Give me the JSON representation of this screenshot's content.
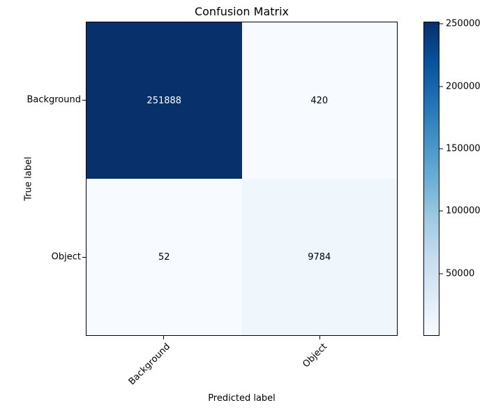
{
  "chart_data": {
    "type": "heatmap",
    "title": "Confusion Matrix",
    "xlabel": "Predicted label",
    "ylabel": "True label",
    "x_tick_labels": [
      "Background",
      "Object"
    ],
    "y_tick_labels": [
      "Background",
      "Object"
    ],
    "matrix": [
      [
        251888,
        420
      ],
      [
        52,
        9784
      ]
    ],
    "cells": [
      {
        "row": "Background",
        "col": "Background",
        "value": "251888",
        "bg": "#08306b",
        "fg": "#ffffff"
      },
      {
        "row": "Background",
        "col": "Object",
        "value": "420",
        "bg": "#f7fbff",
        "fg": "#000000"
      },
      {
        "row": "Object",
        "col": "Background",
        "value": "52",
        "bg": "#f7fbff",
        "fg": "#000000"
      },
      {
        "row": "Object",
        "col": "Object",
        "value": "9784",
        "bg": "#eff6fc",
        "fg": "#000000"
      }
    ],
    "colormap": "Blues",
    "colormap_low": "#f7fbff",
    "colormap_high": "#08306b",
    "legend_position": "colorbar-right",
    "grid": false,
    "colorbar": {
      "vmin": 52,
      "vmax": 251888,
      "ticks": [
        250000,
        200000,
        150000,
        100000,
        50000
      ]
    }
  }
}
